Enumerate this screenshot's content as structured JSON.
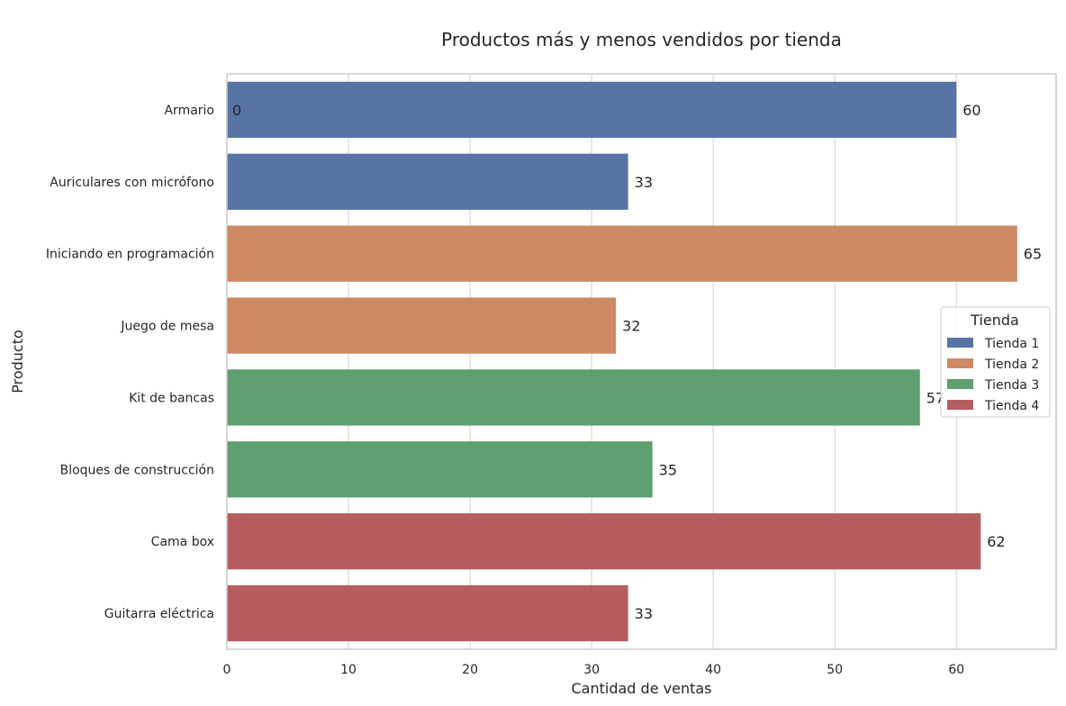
{
  "chart_data": {
    "type": "bar",
    "orientation": "horizontal",
    "title": "Productos más y menos vendidos por tienda",
    "xlabel": "Cantidad de ventas",
    "ylabel": "Producto",
    "xlim": [
      0,
      68.2
    ],
    "xticks": [
      0,
      10,
      20,
      30,
      40,
      50,
      60
    ],
    "grid": true,
    "categories": [
      "Armario",
      "Auriculares con micrófono",
      "Iniciando en programación",
      "Juego de mesa",
      "Kit de bancas",
      "Bloques de construcción",
      "Cama box",
      "Guitarra eléctrica"
    ],
    "values": [
      60,
      33,
      65,
      32,
      57,
      35,
      62,
      33
    ],
    "bar_series": [
      "Tienda 1",
      "Tienda 1",
      "Tienda 2",
      "Tienda 2",
      "Tienda 3",
      "Tienda 3",
      "Tienda 4",
      "Tienda 4"
    ],
    "extra_labels": [
      {
        "category": "Armario",
        "text": "0"
      }
    ],
    "legend": {
      "title": "Tienda",
      "placement": "right",
      "entries": [
        {
          "name": "Tienda 1",
          "color": "#5874a5"
        },
        {
          "name": "Tienda 2",
          "color": "#cc8963"
        },
        {
          "name": "Tienda 3",
          "color": "#5f9e6e"
        },
        {
          "name": "Tienda 4",
          "color": "#b65d60"
        }
      ]
    }
  }
}
